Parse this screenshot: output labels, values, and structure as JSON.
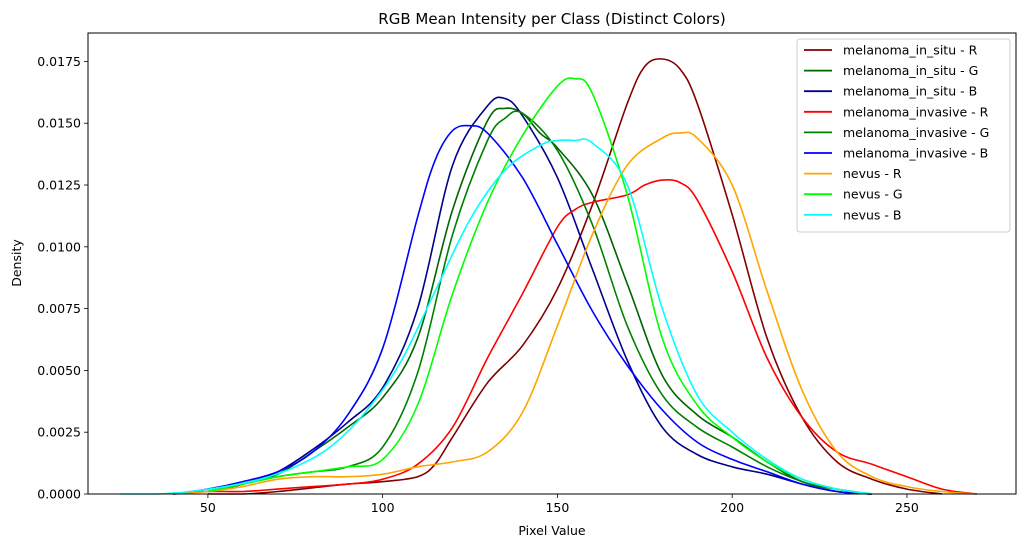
{
  "chart_data": {
    "type": "line",
    "title": "RGB Mean Intensity per Class (Distinct Colors)",
    "xlabel": "Pixel Value",
    "ylabel": "Density",
    "xlim": [
      15.7,
      281.2
    ],
    "ylim": [
      0,
      0.01865
    ],
    "xticks": [
      50,
      100,
      150,
      200,
      250
    ],
    "xtick_labels": [
      "50",
      "100",
      "150",
      "200",
      "250"
    ],
    "yticks": [
      0,
      0.0025,
      0.005,
      0.0075,
      0.01,
      0.0125,
      0.015,
      0.0175
    ],
    "ytick_labels": [
      "0.0000",
      "0.0025",
      "0.0050",
      "0.0075",
      "0.0100",
      "0.0125",
      "0.0150",
      "0.0175"
    ],
    "grid": false,
    "legend_position": "top-right",
    "series": [
      {
        "name": "melanoma_in_situ - R",
        "color": "#800000",
        "x": [
          50,
          60,
          70,
          80,
          90,
          100,
          110,
          115,
          120,
          130,
          140,
          150,
          160,
          170,
          175,
          180,
          185,
          190,
          200,
          210,
          220,
          230,
          240,
          250,
          260
        ],
        "y": [
          0.0,
          0.0,
          0.0001,
          0.00025,
          0.0004,
          0.0005,
          0.0007,
          0.0012,
          0.0023,
          0.0045,
          0.006,
          0.0083,
          0.0117,
          0.0158,
          0.0173,
          0.0176,
          0.0172,
          0.0158,
          0.0113,
          0.0063,
          0.0031,
          0.0013,
          0.0006,
          0.0002,
          0.0
        ]
      },
      {
        "name": "melanoma_in_situ - G",
        "color": "#006400",
        "x": [
          50,
          60,
          70,
          80,
          90,
          100,
          110,
          120,
          130,
          135,
          140,
          145,
          150,
          160,
          170,
          180,
          190,
          200,
          210,
          220,
          230,
          240
        ],
        "y": [
          0.0001,
          0.0004,
          0.0008,
          0.0017,
          0.0027,
          0.0039,
          0.0063,
          0.0115,
          0.0151,
          0.0156,
          0.0154,
          0.0146,
          0.014,
          0.0121,
          0.0085,
          0.0048,
          0.0032,
          0.0023,
          0.0013,
          0.0005,
          0.0002,
          0.0
        ]
      },
      {
        "name": "melanoma_in_situ - B",
        "color": "#00008b",
        "x": [
          50,
          60,
          70,
          80,
          90,
          100,
          110,
          120,
          130,
          135,
          140,
          150,
          160,
          170,
          180,
          190,
          200,
          210,
          220,
          230,
          240
        ],
        "y": [
          0.0001,
          0.0004,
          0.0009,
          0.0018,
          0.0029,
          0.0043,
          0.0075,
          0.0133,
          0.0157,
          0.016,
          0.0153,
          0.0128,
          0.0091,
          0.0054,
          0.0027,
          0.0016,
          0.0011,
          0.0008,
          0.0004,
          0.0001,
          0.0
        ]
      },
      {
        "name": "melanoma_invasive - R",
        "color": "#ff0000",
        "x": [
          40,
          50,
          60,
          70,
          80,
          90,
          100,
          110,
          120,
          130,
          140,
          150,
          155,
          160,
          170,
          175,
          180,
          185,
          190,
          200,
          210,
          220,
          230,
          240,
          250,
          260,
          270
        ],
        "y": [
          0.0,
          0.0001,
          0.0001,
          0.0002,
          0.0003,
          0.0004,
          0.0006,
          0.0012,
          0.0027,
          0.0055,
          0.0081,
          0.0108,
          0.0115,
          0.0118,
          0.0121,
          0.0125,
          0.0127,
          0.0126,
          0.0119,
          0.009,
          0.0055,
          0.0031,
          0.0017,
          0.0012,
          0.0007,
          0.0002,
          0.0
        ]
      },
      {
        "name": "melanoma_invasive - G",
        "color": "#008000",
        "x": [
          50,
          60,
          70,
          80,
          90,
          100,
          110,
          120,
          130,
          135,
          140,
          150,
          160,
          170,
          180,
          190,
          200,
          210,
          220,
          230,
          240
        ],
        "y": [
          0.0001,
          0.0004,
          0.0007,
          0.0009,
          0.0011,
          0.0019,
          0.0049,
          0.0105,
          0.0143,
          0.0152,
          0.0154,
          0.0139,
          0.0109,
          0.0068,
          0.004,
          0.0027,
          0.0019,
          0.0011,
          0.0005,
          0.0001,
          0.0
        ]
      },
      {
        "name": "melanoma_invasive - B",
        "color": "#0000ff",
        "x": [
          40,
          50,
          60,
          70,
          80,
          90,
          100,
          110,
          115,
          120,
          125,
          130,
          140,
          150,
          160,
          170,
          180,
          190,
          200,
          210,
          220,
          230,
          240
        ],
        "y": [
          0.0,
          0.0002,
          0.0005,
          0.0009,
          0.0017,
          0.0032,
          0.0059,
          0.0112,
          0.0135,
          0.0147,
          0.0149,
          0.0146,
          0.0128,
          0.0101,
          0.0074,
          0.0052,
          0.0034,
          0.0021,
          0.0014,
          0.0009,
          0.0004,
          0.0001,
          0.0
        ]
      },
      {
        "name": "nevus - R",
        "color": "#ffa500",
        "x": [
          40,
          50,
          60,
          70,
          80,
          90,
          100,
          110,
          120,
          130,
          140,
          150,
          160,
          170,
          180,
          185,
          190,
          200,
          210,
          220,
          230,
          240,
          250,
          260,
          270
        ],
        "y": [
          0.0,
          0.0001,
          0.0003,
          0.0006,
          0.0007,
          0.0007,
          0.0008,
          0.0011,
          0.0013,
          0.0017,
          0.0033,
          0.0068,
          0.0105,
          0.0133,
          0.0144,
          0.0146,
          0.0144,
          0.0125,
          0.0082,
          0.0042,
          0.0017,
          0.0007,
          0.0003,
          0.0001,
          0.0
        ]
      },
      {
        "name": "nevus - G",
        "color": "#00ff00",
        "x": [
          50,
          60,
          70,
          80,
          90,
          100,
          110,
          120,
          130,
          140,
          150,
          155,
          160,
          170,
          180,
          190,
          200,
          210,
          220,
          230,
          240
        ],
        "y": [
          0.0001,
          0.0004,
          0.0007,
          0.0009,
          0.0011,
          0.0014,
          0.0036,
          0.0081,
          0.0118,
          0.0145,
          0.0165,
          0.0168,
          0.0162,
          0.0121,
          0.0063,
          0.0036,
          0.0023,
          0.0013,
          0.0006,
          0.0002,
          0.0
        ]
      },
      {
        "name": "nevus - B",
        "color": "#00ffff",
        "x": [
          25,
          35,
          45,
          55,
          65,
          75,
          85,
          95,
          105,
          115,
          125,
          135,
          145,
          150,
          155,
          160,
          170,
          180,
          190,
          200,
          210,
          220,
          230,
          240
        ],
        "y": [
          0.0,
          0.0,
          0.0001,
          0.0003,
          0.0006,
          0.0011,
          0.0019,
          0.0033,
          0.0053,
          0.0082,
          0.0111,
          0.0131,
          0.0141,
          0.0143,
          0.0143,
          0.0142,
          0.0125,
          0.0075,
          0.004,
          0.0025,
          0.0014,
          0.0006,
          0.0002,
          0.0
        ]
      }
    ]
  }
}
